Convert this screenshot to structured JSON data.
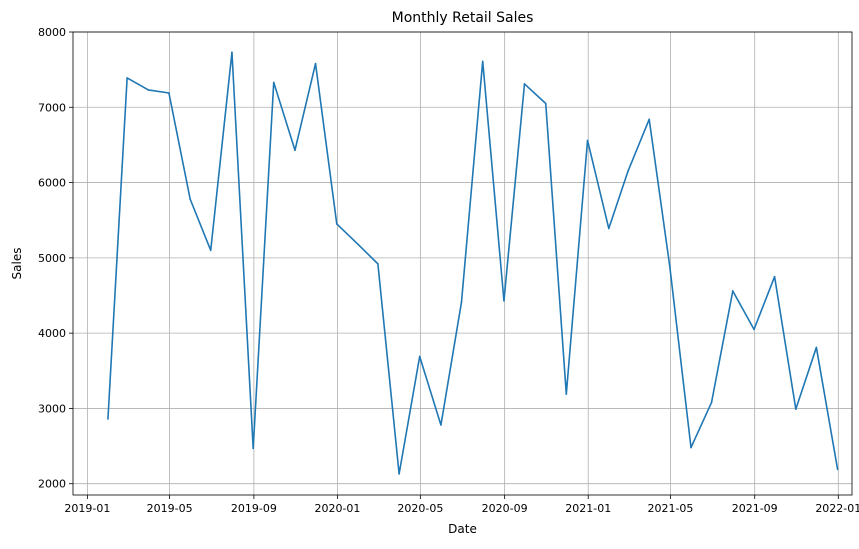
{
  "chart_data": {
    "type": "line",
    "title": "Monthly Retail Sales",
    "xlabel": "Date",
    "ylabel": "Sales",
    "grid": true,
    "line_color": "#1f77b4",
    "xlim": [
      "2018-12-11",
      "2022-01-21"
    ],
    "ylim": [
      1850,
      8000
    ],
    "x_ticks": [
      {
        "date": "2019-01-01",
        "label": "2019-01"
      },
      {
        "date": "2019-05-01",
        "label": "2019-05"
      },
      {
        "date": "2019-09-01",
        "label": "2019-09"
      },
      {
        "date": "2020-01-01",
        "label": "2020-01"
      },
      {
        "date": "2020-05-01",
        "label": "2020-05"
      },
      {
        "date": "2020-09-01",
        "label": "2020-09"
      },
      {
        "date": "2021-01-01",
        "label": "2021-01"
      },
      {
        "date": "2021-05-01",
        "label": "2021-05"
      },
      {
        "date": "2021-09-01",
        "label": "2021-09"
      },
      {
        "date": "2022-01-01",
        "label": "2022-01"
      }
    ],
    "y_ticks": [
      {
        "value": 2000,
        "label": "2000"
      },
      {
        "value": 3000,
        "label": "3000"
      },
      {
        "value": 4000,
        "label": "4000"
      },
      {
        "value": 5000,
        "label": "5000"
      },
      {
        "value": 6000,
        "label": "6000"
      },
      {
        "value": 7000,
        "label": "7000"
      },
      {
        "value": 8000,
        "label": "8000"
      }
    ],
    "x": [
      "2019-01-31",
      "2019-02-28",
      "2019-03-31",
      "2019-04-30",
      "2019-05-31",
      "2019-06-30",
      "2019-07-31",
      "2019-08-31",
      "2019-09-30",
      "2019-10-31",
      "2019-11-30",
      "2019-12-31",
      "2020-01-31",
      "2020-02-29",
      "2020-03-31",
      "2020-04-30",
      "2020-05-31",
      "2020-06-30",
      "2020-07-31",
      "2020-08-31",
      "2020-09-30",
      "2020-10-31",
      "2020-11-30",
      "2020-12-31",
      "2021-01-31",
      "2021-02-28",
      "2021-03-31",
      "2021-04-30",
      "2021-05-31",
      "2021-06-30",
      "2021-07-31",
      "2021-08-31",
      "2021-09-30",
      "2021-10-31",
      "2021-11-30",
      "2021-12-31"
    ],
    "series": [
      {
        "values": [
          2860,
          7390,
          7230,
          7190,
          5780,
          5100,
          7730,
          2470,
          7330,
          6430,
          7580,
          5450,
          5180,
          4920,
          2130,
          3690,
          2780,
          4410,
          7610,
          4430,
          7310,
          7050,
          3190,
          6560,
          5390,
          6150,
          6840,
          4890,
          2480,
          3080,
          4560,
          4050,
          4750,
          2990,
          3810,
          2190
        ]
      }
    ]
  }
}
